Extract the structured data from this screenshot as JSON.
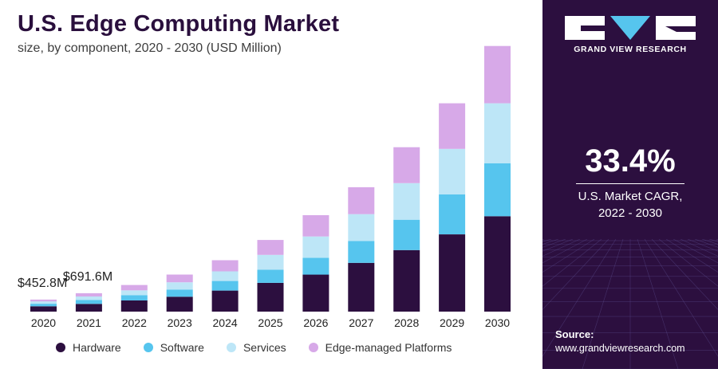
{
  "header": {
    "title": "U.S. Edge Computing Market",
    "subtitle": "size, by component, 2020 - 2030 (USD Million)"
  },
  "panel": {
    "brand": "GRAND VIEW RESEARCH",
    "cagr_value": "33.4%",
    "cagr_label_line1": "U.S. Market CAGR,",
    "cagr_label_line2": "2022 - 2030",
    "source_label": "Source:",
    "source_url": "www.grandviewresearch.com"
  },
  "colors": {
    "hardware": "#2c0f3f",
    "software": "#56c5ee",
    "services": "#bde6f7",
    "edge_platforms": "#d7a9e8",
    "panel_bg": "#2c0f3f"
  },
  "chart_data": {
    "type": "bar",
    "stacked": true,
    "title": "U.S. Edge Computing Market",
    "subtitle": "size, by component, 2020 - 2030 (USD Million)",
    "categories": [
      "2020",
      "2021",
      "2022",
      "2023",
      "2024",
      "2025",
      "2026",
      "2027",
      "2028",
      "2029",
      "2030"
    ],
    "series": [
      {
        "name": "Hardware",
        "color": "#2c0f3f",
        "values": [
          200,
          290,
          420,
          560,
          790,
          1080,
          1390,
          1830,
          2310,
          2900,
          3580
        ]
      },
      {
        "name": "Software",
        "color": "#56c5ee",
        "values": [
          95,
          150,
          200,
          270,
          360,
          490,
          630,
          820,
          1140,
          1500,
          1990
        ]
      },
      {
        "name": "Services",
        "color": "#bde6f7",
        "values": [
          90,
          130,
          180,
          270,
          360,
          560,
          800,
          1010,
          1370,
          1710,
          2250
        ]
      },
      {
        "name": "Edge-managed Platforms",
        "color": "#d7a9e8",
        "values": [
          67.8,
          121.6,
          200,
          290,
          420,
          560,
          800,
          1010,
          1350,
          1710,
          2150
        ]
      }
    ],
    "annotations": [
      {
        "category": "2020",
        "label": "$452.8M"
      },
      {
        "category": "2021",
        "label": "$691.6M"
      }
    ],
    "ylim": [
      0,
      10500
    ],
    "xlabel": "",
    "ylabel": "",
    "grid": false,
    "legend_position": "bottom"
  }
}
